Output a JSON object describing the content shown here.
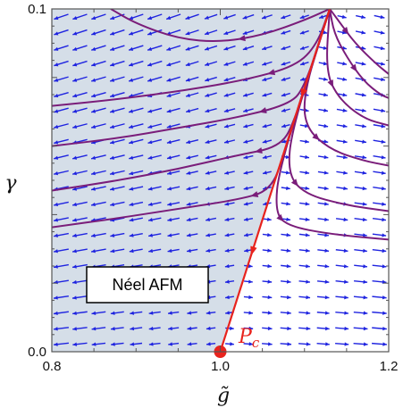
{
  "chart_data": {
    "type": "stream-plot",
    "xlabel": "g̃",
    "ylabel": "γ",
    "xlim": [
      0.8,
      1.2
    ],
    "ylim": [
      0.0,
      0.1
    ],
    "x_ticks": [
      {
        "value": 0.8,
        "label": "0.8"
      },
      {
        "value": 1.0,
        "label": "1.0"
      },
      {
        "value": 1.2,
        "label": "1.2"
      }
    ],
    "y_ticks": [
      {
        "value": 0.0,
        "label": "0.0"
      },
      {
        "value": 0.1,
        "label": "0.1"
      }
    ],
    "region": {
      "label": "Néel AFM",
      "color": "#d5dee8"
    },
    "separatrix": {
      "color": "#e8231d",
      "points": [
        [
          1.0,
          0.0
        ],
        [
          1.13,
          0.1
        ]
      ]
    },
    "critical_point": {
      "name": "P",
      "subscript": "c",
      "x": 1.0,
      "y": 0.0,
      "color": "#e8231d"
    },
    "arrow_color": "#1f24e0",
    "stream_color": "#7a1d7a",
    "streamlines": [
      {
        "side": "left",
        "points": [
          [
            1.13,
            0.1
          ],
          [
            1.1,
            0.0967
          ],
          [
            1.05,
            0.0923
          ],
          [
            1.0,
            0.0903
          ],
          [
            0.95,
            0.0913
          ],
          [
            0.9,
            0.0957
          ],
          [
            0.87,
            0.1
          ]
        ]
      },
      {
        "side": "left",
        "points": [
          [
            1.13,
            0.1
          ],
          [
            1.115,
            0.0897
          ],
          [
            1.09,
            0.0833
          ],
          [
            1.03,
            0.0793
          ],
          [
            0.96,
            0.0763
          ],
          [
            0.88,
            0.0737
          ],
          [
            0.8,
            0.0717
          ]
        ]
      },
      {
        "side": "left",
        "points": [
          [
            1.13,
            0.1
          ],
          [
            1.1,
            0.0767
          ],
          [
            1.08,
            0.072
          ],
          [
            1.02,
            0.0683
          ],
          [
            0.95,
            0.0653
          ],
          [
            0.88,
            0.0623
          ],
          [
            0.8,
            0.06
          ]
        ]
      },
      {
        "side": "left",
        "points": [
          [
            1.13,
            0.1
          ],
          [
            1.088,
            0.0667
          ],
          [
            1.07,
            0.0597
          ],
          [
            1.02,
            0.0573
          ],
          [
            0.95,
            0.0533
          ],
          [
            0.88,
            0.05
          ],
          [
            0.8,
            0.047
          ]
        ]
      },
      {
        "side": "left",
        "points": [
          [
            1.13,
            0.1
          ],
          [
            1.076,
            0.0577
          ],
          [
            1.06,
            0.047
          ],
          [
            1.02,
            0.0443
          ],
          [
            0.95,
            0.0417
          ],
          [
            0.88,
            0.039
          ],
          [
            0.8,
            0.0363
          ]
        ]
      },
      {
        "side": "right",
        "points": [
          [
            1.13,
            0.1
          ],
          [
            1.14,
            0.0967
          ],
          [
            1.16,
            0.09
          ],
          [
            1.185,
            0.084
          ],
          [
            1.2,
            0.081
          ]
        ]
      },
      {
        "side": "right",
        "points": [
          [
            1.13,
            0.1
          ],
          [
            1.135,
            0.093
          ],
          [
            1.15,
            0.086
          ],
          [
            1.17,
            0.079
          ],
          [
            1.19,
            0.075
          ],
          [
            1.2,
            0.074
          ]
        ]
      },
      {
        "side": "right",
        "points": [
          [
            1.13,
            0.1
          ],
          [
            1.125,
            0.082
          ],
          [
            1.14,
            0.074
          ],
          [
            1.17,
            0.068
          ],
          [
            1.2,
            0.066
          ]
        ]
      },
      {
        "side": "right",
        "points": [
          [
            1.13,
            0.1
          ],
          [
            1.1,
            0.0767
          ],
          [
            1.1,
            0.0657
          ],
          [
            1.13,
            0.059
          ],
          [
            1.17,
            0.0557
          ],
          [
            1.2,
            0.0543
          ]
        ]
      },
      {
        "side": "right",
        "points": [
          [
            1.13,
            0.1
          ],
          [
            1.085,
            0.065
          ],
          [
            1.08,
            0.052
          ],
          [
            1.1,
            0.046
          ],
          [
            1.15,
            0.0427
          ],
          [
            1.2,
            0.041
          ]
        ]
      },
      {
        "side": "right",
        "points": [
          [
            1.13,
            0.1
          ],
          [
            1.07,
            0.054
          ],
          [
            1.065,
            0.0407
          ],
          [
            1.08,
            0.0367
          ],
          [
            1.13,
            0.0343
          ],
          [
            1.2,
            0.0327
          ]
        ]
      }
    ]
  }
}
